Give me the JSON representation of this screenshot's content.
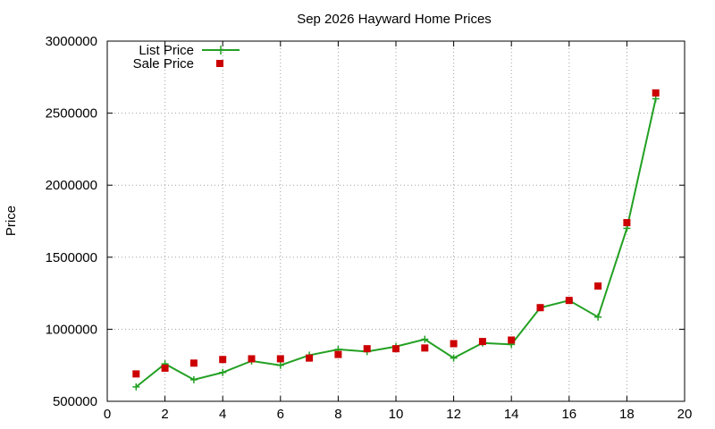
{
  "chart_data": {
    "type": "line",
    "title": "Sep 2026 Hayward Home Prices",
    "xlabel": "",
    "ylabel": "Price",
    "xlim": [
      0,
      20
    ],
    "ylim": [
      500000,
      3000000
    ],
    "xticks": [
      0,
      2,
      4,
      6,
      8,
      10,
      12,
      14,
      16,
      18,
      20
    ],
    "yticks": [
      500000,
      1000000,
      1500000,
      2000000,
      2500000,
      3000000
    ],
    "xtick_labels": [
      "0",
      "2",
      "4",
      "6",
      "8",
      "10",
      "12",
      "14",
      "16",
      "18",
      "20"
    ],
    "ytick_labels": [
      "500000",
      "1000000",
      "1500000",
      "2000000",
      "2500000",
      "3000000"
    ],
    "grid": true,
    "legend_position": "top-left",
    "x": [
      1,
      2,
      3,
      4,
      5,
      6,
      7,
      8,
      9,
      10,
      11,
      12,
      13,
      14,
      15,
      16,
      17,
      18,
      19
    ],
    "series": [
      {
        "name": "List Price",
        "style": "line-with-plus-markers",
        "color": "#22a022",
        "values": [
          600000,
          760000,
          650000,
          700000,
          780000,
          750000,
          820000,
          860000,
          845000,
          880000,
          930000,
          800000,
          905000,
          895000,
          1150000,
          1200000,
          1085000,
          1700000,
          2600000
        ]
      },
      {
        "name": "Sale Price",
        "style": "square-markers",
        "color": "#cc0000",
        "values": [
          690000,
          730000,
          765000,
          790000,
          795000,
          795000,
          800000,
          825000,
          865000,
          865000,
          870000,
          900000,
          915000,
          925000,
          1150000,
          1200000,
          1300000,
          1740000,
          2640000
        ]
      }
    ]
  }
}
